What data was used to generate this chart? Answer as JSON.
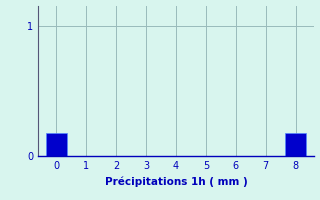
{
  "categories": [
    0,
    1,
    2,
    3,
    4,
    5,
    6,
    7,
    8
  ],
  "values": [
    0.18,
    0,
    0,
    0,
    0,
    0,
    0,
    0,
    0.18
  ],
  "bar_color": "#0000cc",
  "bar_edge_color": "#5588ff",
  "background_color": "#d8f5ee",
  "grid_color": "#99bbbb",
  "axis_color": "#555577",
  "xlabel": "Précipitations 1h ( mm )",
  "xlabel_fontsize": 7.5,
  "yticks": [
    0,
    1
  ],
  "ylim": [
    0,
    1.15
  ],
  "xlim": [
    -0.6,
    8.6
  ],
  "tick_label_color": "#0000bb",
  "tick_fontsize": 7,
  "bar_width": 0.7
}
